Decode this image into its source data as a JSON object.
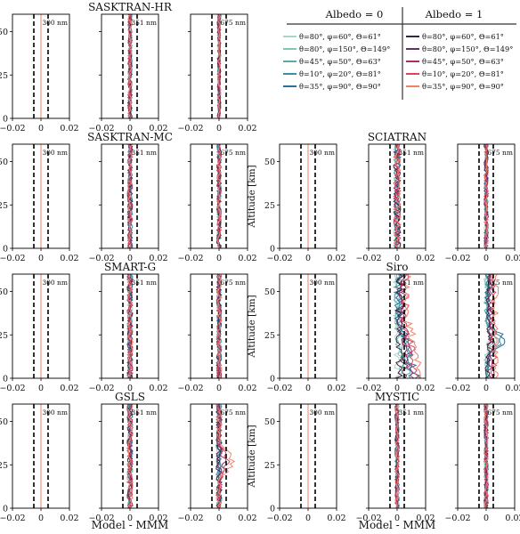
{
  "figure": {
    "xlabel": "Model - MMM",
    "ylabel": "Altitude [km]",
    "xticks": [
      "−0.02",
      "0",
      "0.02"
    ],
    "yticks": [
      "0",
      "25",
      "50"
    ],
    "xlim": [
      -0.02,
      0.02
    ],
    "ylim": [
      0,
      60
    ],
    "dashed_lines_at": [
      -0.005,
      0.005
    ],
    "wavelength_labels": [
      "300 nm",
      "351 nm",
      "675 nm"
    ]
  },
  "legend": {
    "albedo0_title": "Albedo = 0",
    "albedo1_title": "Albedo = 1",
    "rows": [
      {
        "label": "θ=80°, φ=60°, Θ=61°",
        "color_a0": "#a7d7c8",
        "color_a1": "#3b2440"
      },
      {
        "label": "θ=80°, φ=150°, Θ=149°",
        "color_a0": "#82c4b6",
        "color_a1": "#6b2e5a"
      },
      {
        "label": "θ=45°, φ=50°, Θ=63°",
        "color_a0": "#5aa9a7",
        "color_a1": "#a4306a"
      },
      {
        "label": "θ=10°, φ=20°, Θ=81°",
        "color_a0": "#3d8da3",
        "color_a1": "#d8465e"
      },
      {
        "label": "θ=35°, φ=90°, Θ=90°",
        "color_a0": "#2e6e9a",
        "color_a1": "#f0826a"
      }
    ]
  },
  "models": [
    {
      "name": "SASKTRAN-HR",
      "panel_title": "SASKTRAN-HR"
    },
    {
      "name": "SASKTRAN-MC",
      "panel_title": "SASKTRAN-MC"
    },
    {
      "name": "SCIATRAN",
      "panel_title": "SCIATRAN"
    },
    {
      "name": "SMART-G",
      "panel_title": "SMART-G"
    },
    {
      "name": "Siro",
      "panel_title": "Siro"
    },
    {
      "name": "GSLS",
      "panel_title": "GSLS"
    },
    {
      "name": "MYSTIC",
      "panel_title": "MYSTIC"
    }
  ],
  "chart_data": {
    "type": "line",
    "description_note": "Profiles of model minus multi-model mean vs altitude, per model and wavelength; 10 geometry/albedo series each.",
    "x_unit": "Model - MMM",
    "y_unit": "Altitude [km]",
    "panels": [
      {
        "model": "SASKTRAN-HR",
        "wavelength": "300 nm",
        "spread": 0.0,
        "offset": 0.0
      },
      {
        "model": "SASKTRAN-HR",
        "wavelength": "351 nm",
        "spread": 0.0015,
        "offset": 0.0
      },
      {
        "model": "SASKTRAN-HR",
        "wavelength": "675 nm",
        "spread": 0.0012,
        "offset": 0.0
      },
      {
        "model": "SASKTRAN-MC",
        "wavelength": "300 nm",
        "spread": 0.0,
        "offset": 0.0
      },
      {
        "model": "SASKTRAN-MC",
        "wavelength": "351 nm",
        "spread": 0.0018,
        "offset": 0.0
      },
      {
        "model": "SASKTRAN-MC",
        "wavelength": "675 nm",
        "spread": 0.0016,
        "offset": 0.0
      },
      {
        "model": "SCIATRAN",
        "wavelength": "300 nm",
        "spread": 0.0,
        "offset": 0.0
      },
      {
        "model": "SCIATRAN",
        "wavelength": "351 nm",
        "spread": 0.0025,
        "offset": 0.0
      },
      {
        "model": "SCIATRAN",
        "wavelength": "675 nm",
        "spread": 0.0015,
        "offset": 0.0
      },
      {
        "model": "SMART-G",
        "wavelength": "300 nm",
        "spread": 0.0,
        "offset": 0.0
      },
      {
        "model": "SMART-G",
        "wavelength": "351 nm",
        "spread": 0.002,
        "offset": 0.0
      },
      {
        "model": "SMART-G",
        "wavelength": "675 nm",
        "spread": 0.0018,
        "offset": 0.0
      },
      {
        "model": "Siro",
        "wavelength": "300 nm",
        "spread": 0.0,
        "offset": 0.0
      },
      {
        "model": "Siro",
        "wavelength": "351 nm",
        "spread": 0.003,
        "offset": 0.004
      },
      {
        "model": "Siro",
        "wavelength": "675 nm",
        "spread": 0.002,
        "offset": 0.004
      },
      {
        "model": "GSLS",
        "wavelength": "300 nm",
        "spread": 0.0,
        "offset": 0.0
      },
      {
        "model": "GSLS",
        "wavelength": "351 nm",
        "spread": 0.002,
        "offset": 0.0
      },
      {
        "model": "GSLS",
        "wavelength": "675 nm",
        "spread": 0.002,
        "offset": 0.0
      },
      {
        "model": "MYSTIC",
        "wavelength": "300 nm",
        "spread": 0.0,
        "offset": 0.0
      },
      {
        "model": "MYSTIC",
        "wavelength": "351 nm",
        "spread": 0.0015,
        "offset": 0.0
      },
      {
        "model": "MYSTIC",
        "wavelength": "675 nm",
        "spread": 0.0015,
        "offset": 0.0
      }
    ]
  }
}
